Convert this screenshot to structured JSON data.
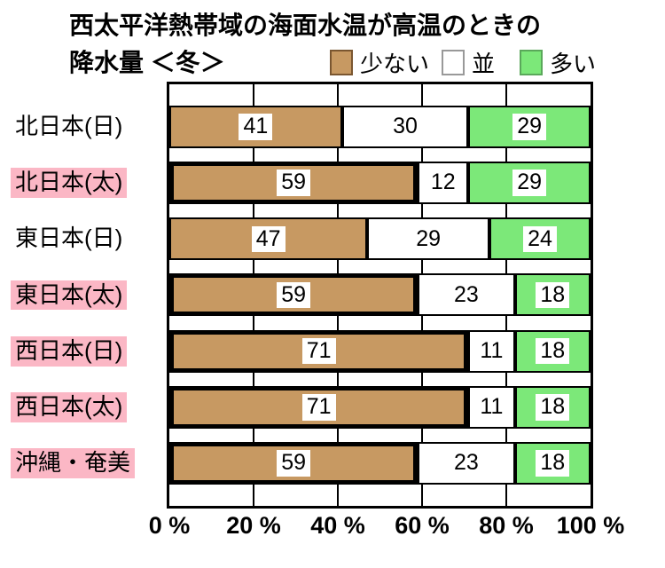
{
  "title": {
    "line1": "西太平洋熱帯域の海面水温が高温のときの",
    "line2": "降水量 ＜冬＞"
  },
  "legend": [
    {
      "label": "少ない",
      "color": "#C79962",
      "border": "#7A5630"
    },
    {
      "label": "並",
      "color": "#FFFFFF",
      "border": "#999999"
    },
    {
      "label": "多い",
      "color": "#7CE879",
      "border": "#5AA85A"
    }
  ],
  "colors": {
    "few": "#C79962",
    "normal": "#FFFFFF",
    "many": "#7CE879",
    "highlight_label_bg": "#FBB7C5",
    "bar_border": "#000000"
  },
  "chart_data": {
    "type": "bar",
    "stacked": true,
    "orientation": "horizontal",
    "title": "西太平洋熱帯域の海面水温が高温のときの降水量 ＜冬＞",
    "categories": [
      "北日本(日)",
      "北日本(太)",
      "東日本(日)",
      "東日本(太)",
      "西日本(日)",
      "西日本(太)",
      "沖縄・奄美"
    ],
    "highlighted_categories": [
      false,
      true,
      false,
      true,
      true,
      true,
      true
    ],
    "series": [
      {
        "name": "少ない",
        "key": "few",
        "color": "#C79962",
        "values": [
          41,
          59,
          47,
          59,
          71,
          71,
          59
        ]
      },
      {
        "name": "並",
        "key": "normal",
        "color": "#FFFFFF",
        "values": [
          30,
          12,
          29,
          23,
          11,
          11,
          23
        ]
      },
      {
        "name": "多い",
        "key": "many",
        "color": "#7CE879",
        "values": [
          29,
          29,
          24,
          18,
          18,
          18,
          18
        ]
      }
    ],
    "x_ticks": [
      "0 %",
      "20 %",
      "40 %",
      "60 %",
      "80 %",
      "100 %"
    ],
    "xlim": [
      0,
      100
    ],
    "grid": true,
    "legend_position": "top",
    "value_labels": true
  }
}
